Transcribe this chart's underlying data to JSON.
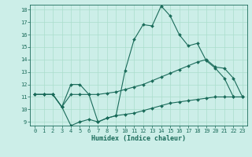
{
  "xlabel": "Humidex (Indice chaleur)",
  "bg_color": "#cceee8",
  "grid_color": "#aaddcc",
  "line_color": "#1a6b5a",
  "xlim": [
    -0.5,
    23.5
  ],
  "ylim": [
    8.7,
    18.4
  ],
  "xticks": [
    0,
    1,
    2,
    3,
    4,
    5,
    6,
    7,
    8,
    9,
    10,
    11,
    12,
    13,
    14,
    15,
    16,
    17,
    18,
    19,
    20,
    21,
    22,
    23
  ],
  "yticks": [
    9,
    10,
    11,
    12,
    13,
    14,
    15,
    16,
    17,
    18
  ],
  "line1_x": [
    0,
    1,
    2,
    3,
    4,
    5,
    6,
    7,
    8,
    9,
    10,
    11,
    12,
    13,
    14,
    15,
    16,
    17,
    18,
    19,
    20,
    21,
    22,
    23
  ],
  "line1_y": [
    11.2,
    11.2,
    11.2,
    10.2,
    12.0,
    12.0,
    11.2,
    9.0,
    9.3,
    9.5,
    13.1,
    15.6,
    16.8,
    16.7,
    18.3,
    17.5,
    16.0,
    15.1,
    15.3,
    13.9,
    13.3,
    12.5,
    11.0,
    11.0
  ],
  "line2_x": [
    0,
    1,
    2,
    3,
    4,
    5,
    6,
    7,
    8,
    9,
    10,
    11,
    12,
    13,
    14,
    15,
    16,
    17,
    18,
    19,
    20,
    21,
    22,
    23
  ],
  "line2_y": [
    11.2,
    11.2,
    11.2,
    10.2,
    11.2,
    11.2,
    11.2,
    11.2,
    11.3,
    11.4,
    11.6,
    11.8,
    12.0,
    12.3,
    12.6,
    12.9,
    13.2,
    13.5,
    13.8,
    14.0,
    13.4,
    13.3,
    12.5,
    11.0
  ],
  "line3_x": [
    0,
    1,
    2,
    3,
    4,
    5,
    6,
    7,
    8,
    9,
    10,
    11,
    12,
    13,
    14,
    15,
    16,
    17,
    18,
    19,
    20,
    21,
    22,
    23
  ],
  "line3_y": [
    11.2,
    11.2,
    11.2,
    10.2,
    8.7,
    9.0,
    9.2,
    9.0,
    9.3,
    9.5,
    9.6,
    9.7,
    9.9,
    10.1,
    10.3,
    10.5,
    10.6,
    10.7,
    10.8,
    10.9,
    11.0,
    11.0,
    11.0,
    11.0
  ]
}
